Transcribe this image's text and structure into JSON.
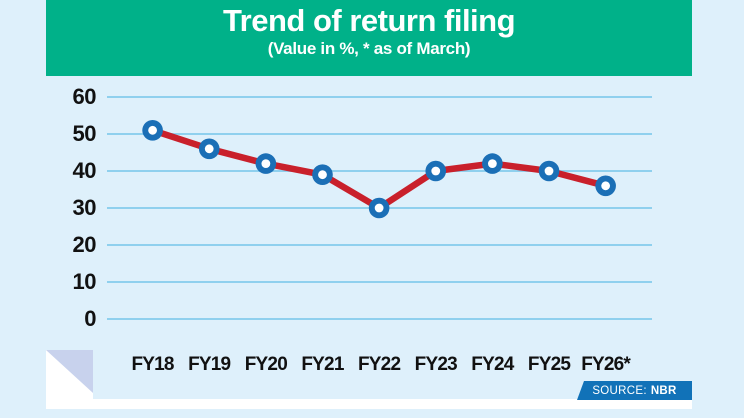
{
  "header": {
    "title": "Trend of return filing",
    "subtitle": "(Value in %, * as of March)"
  },
  "chart_data": {
    "type": "line",
    "title": "Trend of return filing",
    "subtitle": "(Value in %, * as of March)",
    "categories": [
      "FY18",
      "FY19",
      "FY20",
      "FY21",
      "FY22",
      "FY23",
      "FY24",
      "FY25",
      "FY26*"
    ],
    "values": [
      51,
      46,
      42,
      39,
      30,
      40,
      42,
      40,
      36
    ],
    "xlabel": "",
    "ylabel": "",
    "ylim": [
      0,
      60
    ],
    "yticks": [
      0,
      10,
      20,
      30,
      40,
      50,
      60
    ],
    "grid": true,
    "legend": "none",
    "line_color": "#c9202b",
    "marker_ring_color": "#1b6fb6",
    "marker_center_color": "#ffffff",
    "gridline_color": "#8fd0ee"
  },
  "footer": {
    "source_label": "SOURCE:",
    "source_value": "NBR"
  },
  "colors": {
    "background": "#def0fb",
    "header_green": "#00b189",
    "axis_text": "#111111",
    "source_badge_blue": "#1172b8",
    "fold_lavender": "#c8d2ed",
    "bottom_strip_white": "#ffffff"
  }
}
